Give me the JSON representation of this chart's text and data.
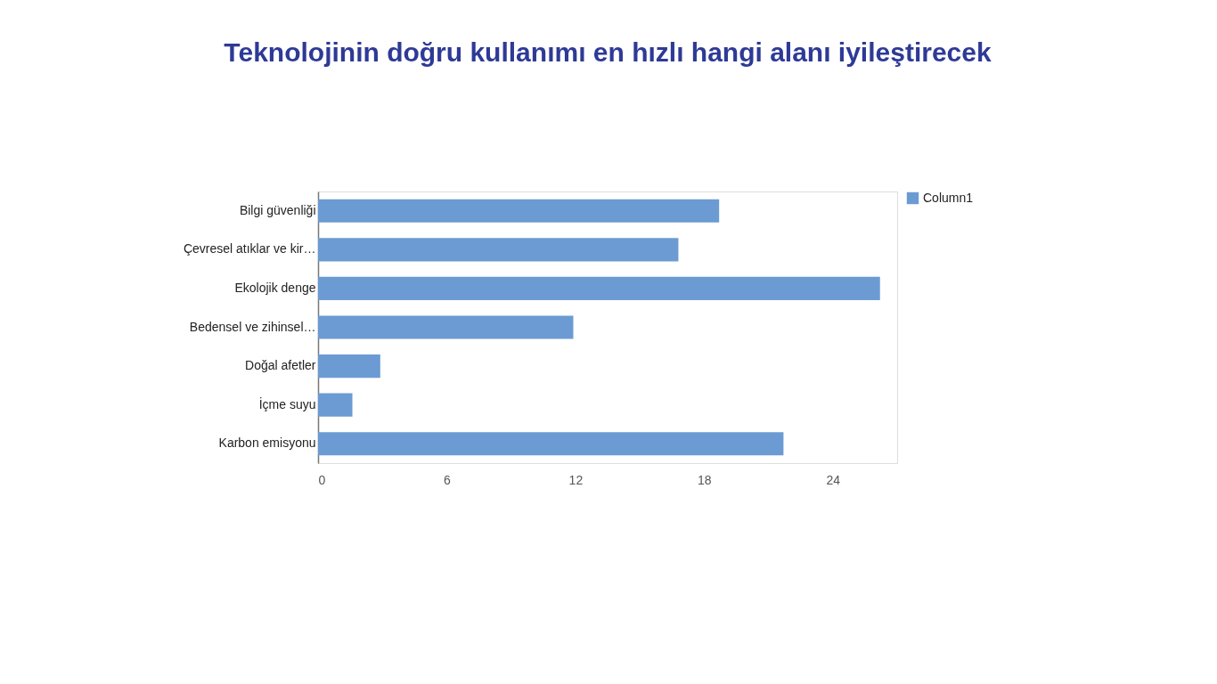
{
  "chart_data": {
    "type": "bar",
    "orientation": "horizontal",
    "title": "Teknolojinin doğru kullanımı en hızlı hangi alanı iyileştirecek",
    "categories": [
      "Bilgi güvenliği",
      "Çevresel atıklar ve kir…",
      "Ekolojik denge",
      "Bedensel ve zihinsel…",
      "Doğal afetler",
      "İçme suyu",
      "Karbon emisyonu"
    ],
    "series": [
      {
        "name": "Column1",
        "color": "#6b9bd2",
        "values": [
          18.7,
          16.8,
          26.2,
          11.9,
          2.9,
          1.6,
          21.7
        ]
      }
    ],
    "xlim": [
      0,
      27
    ],
    "xticks": [
      0,
      6,
      12,
      18,
      24
    ],
    "grid": false,
    "legend": "top right"
  }
}
